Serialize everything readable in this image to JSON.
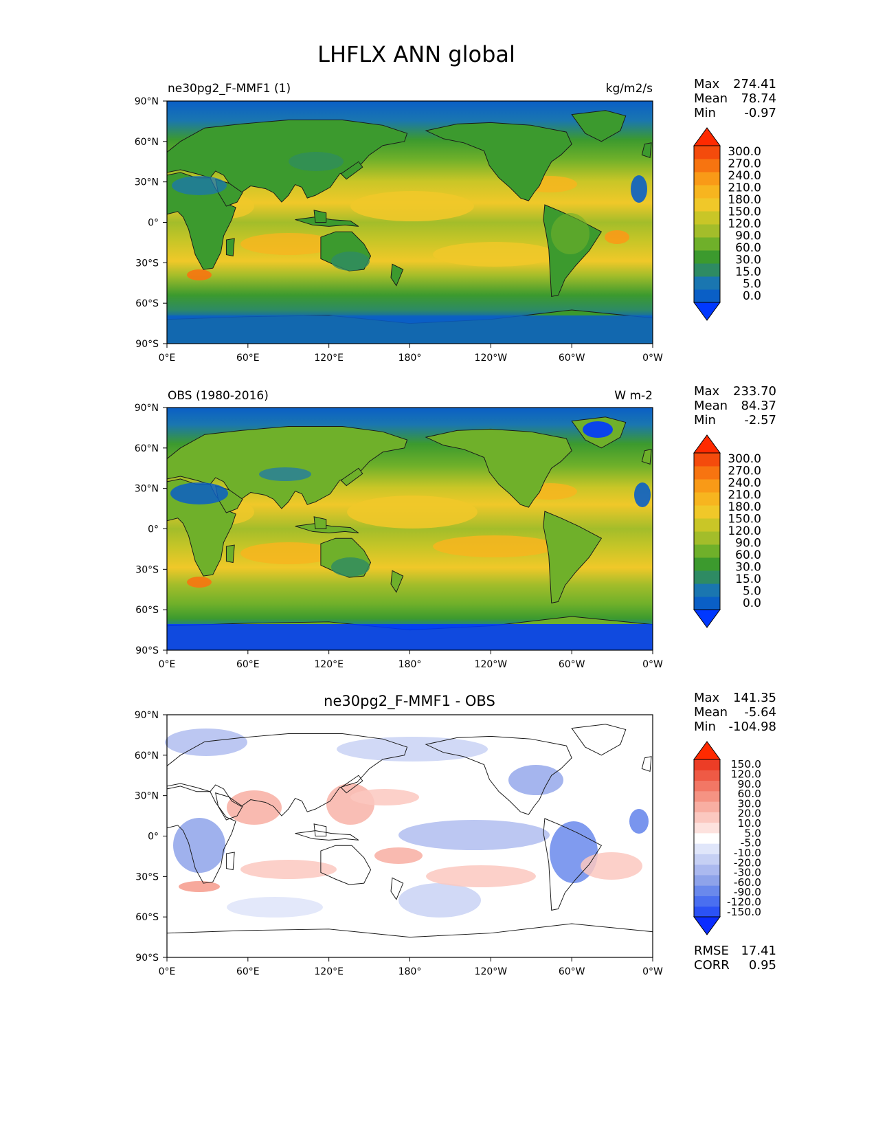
{
  "title": "LHFLX ANN global",
  "colors": {
    "ocean_base": "#0a5fc6",
    "land_base": "#3c9a2e",
    "diff_base": "#ffffff",
    "coastline": "#1a1a1a"
  },
  "panels": [
    {
      "id": "test",
      "label": "ne30pg2_F-MMF1 (1)",
      "units": "kg/m2/s",
      "stats": {
        "max": "274.41",
        "mean": "78.74",
        "min": "-0.97"
      },
      "colorbar": {
        "labels": [
          "300.0",
          "270.0",
          "240.0",
          "210.0",
          "180.0",
          "150.0",
          "120.0",
          "90.0",
          "60.0",
          "30.0",
          "15.0",
          "5.0",
          "0.0"
        ],
        "colors": [
          "#0038ff",
          "#0a5fc6",
          "#1a76b0",
          "#2e8b63",
          "#3c9a2e",
          "#6fb02a",
          "#a3bd2a",
          "#c9c627",
          "#f0c829",
          "#f7b51f",
          "#f99a17",
          "#f77410",
          "#f44b0c",
          "#ff2a00"
        ]
      }
    },
    {
      "id": "ref",
      "label": "OBS (1980-2016)",
      "units": "W m-2",
      "stats": {
        "max": "233.70",
        "mean": "84.37",
        "min": "-2.57"
      },
      "colorbar": {
        "labels": [
          "300.0",
          "270.0",
          "240.0",
          "210.0",
          "180.0",
          "150.0",
          "120.0",
          "90.0",
          "60.0",
          "30.0",
          "15.0",
          "5.0",
          "0.0"
        ],
        "colors": [
          "#0038ff",
          "#0a5fc6",
          "#1a76b0",
          "#2e8b63",
          "#3c9a2e",
          "#6fb02a",
          "#a3bd2a",
          "#c9c627",
          "#f0c829",
          "#f7b51f",
          "#f99a17",
          "#f77410",
          "#f44b0c",
          "#ff2a00"
        ]
      }
    },
    {
      "id": "diff",
      "label": "ne30pg2_F-MMF1 - OBS",
      "units": "",
      "stats": {
        "max": "141.35",
        "mean": "-5.64",
        "min": "-104.98"
      },
      "rmse": "17.41",
      "corr": "0.95",
      "colorbar": {
        "labels": [
          "150.0",
          "120.0",
          "90.0",
          "60.0",
          "30.0",
          "20.0",
          "10.0",
          "5.0",
          "-5.0",
          "-10.0",
          "-20.0",
          "-30.0",
          "-60.0",
          "-90.0",
          "-120.0",
          "-150.0"
        ],
        "colors": [
          "#0a2dff",
          "#2b52f5",
          "#4a6ff0",
          "#6a89ec",
          "#8ea3ea",
          "#abb9ef",
          "#c6d0f4",
          "#e0e6fa",
          "#ffffff",
          "#fde2de",
          "#fbc8c0",
          "#f8aea2",
          "#f59383",
          "#f27765",
          "#ef5a45",
          "#ec3d26",
          "#ff2a00"
        ]
      }
    }
  ],
  "stat_labels": {
    "max": "Max",
    "mean": "Mean",
    "min": "Min",
    "rmse": "RMSE",
    "corr": "CORR"
  },
  "axes": {
    "x_ticks": [
      "0°E",
      "60°E",
      "120°E",
      "180°",
      "120°W",
      "60°W",
      "0°W"
    ],
    "y_ticks": [
      "90°N",
      "60°N",
      "30°N",
      "0°",
      "30°S",
      "60°S",
      "90°S"
    ],
    "x_range": [
      0,
      360
    ],
    "y_range": [
      -90,
      90
    ]
  },
  "chart_data": [
    {
      "type": "heatmap",
      "title": "ne30pg2_F-MMF1 (1)",
      "units": "kg/m2/s",
      "x_ticks": [
        "0°E",
        "60°E",
        "120°E",
        "180°",
        "120°W",
        "60°W",
        "0°W"
      ],
      "y_ticks": [
        "90°N",
        "60°N",
        "30°N",
        "0°",
        "30°S",
        "60°S",
        "90°S"
      ],
      "levels": [
        0,
        5,
        15,
        30,
        60,
        90,
        120,
        150,
        180,
        210,
        240,
        270,
        300
      ],
      "max": 274.41,
      "mean": 78.74,
      "min": -0.97
    },
    {
      "type": "heatmap",
      "title": "OBS (1980-2016)",
      "units": "W m-2",
      "x_ticks": [
        "0°E",
        "60°E",
        "120°E",
        "180°",
        "120°W",
        "60°W",
        "0°W"
      ],
      "y_ticks": [
        "90°N",
        "60°N",
        "30°N",
        "0°",
        "30°S",
        "60°S",
        "90°S"
      ],
      "levels": [
        0,
        5,
        15,
        30,
        60,
        90,
        120,
        150,
        180,
        210,
        240,
        270,
        300
      ],
      "max": 233.7,
      "mean": 84.37,
      "min": -2.57
    },
    {
      "type": "heatmap",
      "title": "ne30pg2_F-MMF1 - OBS",
      "x_ticks": [
        "0°E",
        "60°E",
        "120°E",
        "180°",
        "120°W",
        "60°W",
        "0°W"
      ],
      "y_ticks": [
        "90°N",
        "60°N",
        "30°N",
        "0°",
        "30°S",
        "60°S",
        "90°S"
      ],
      "levels": [
        -150,
        -120,
        -90,
        -60,
        -30,
        -20,
        -10,
        -5,
        5,
        10,
        20,
        30,
        60,
        90,
        120,
        150
      ],
      "max": 141.35,
      "mean": -5.64,
      "min": -104.98,
      "rmse": 17.41,
      "corr": 0.95
    }
  ]
}
